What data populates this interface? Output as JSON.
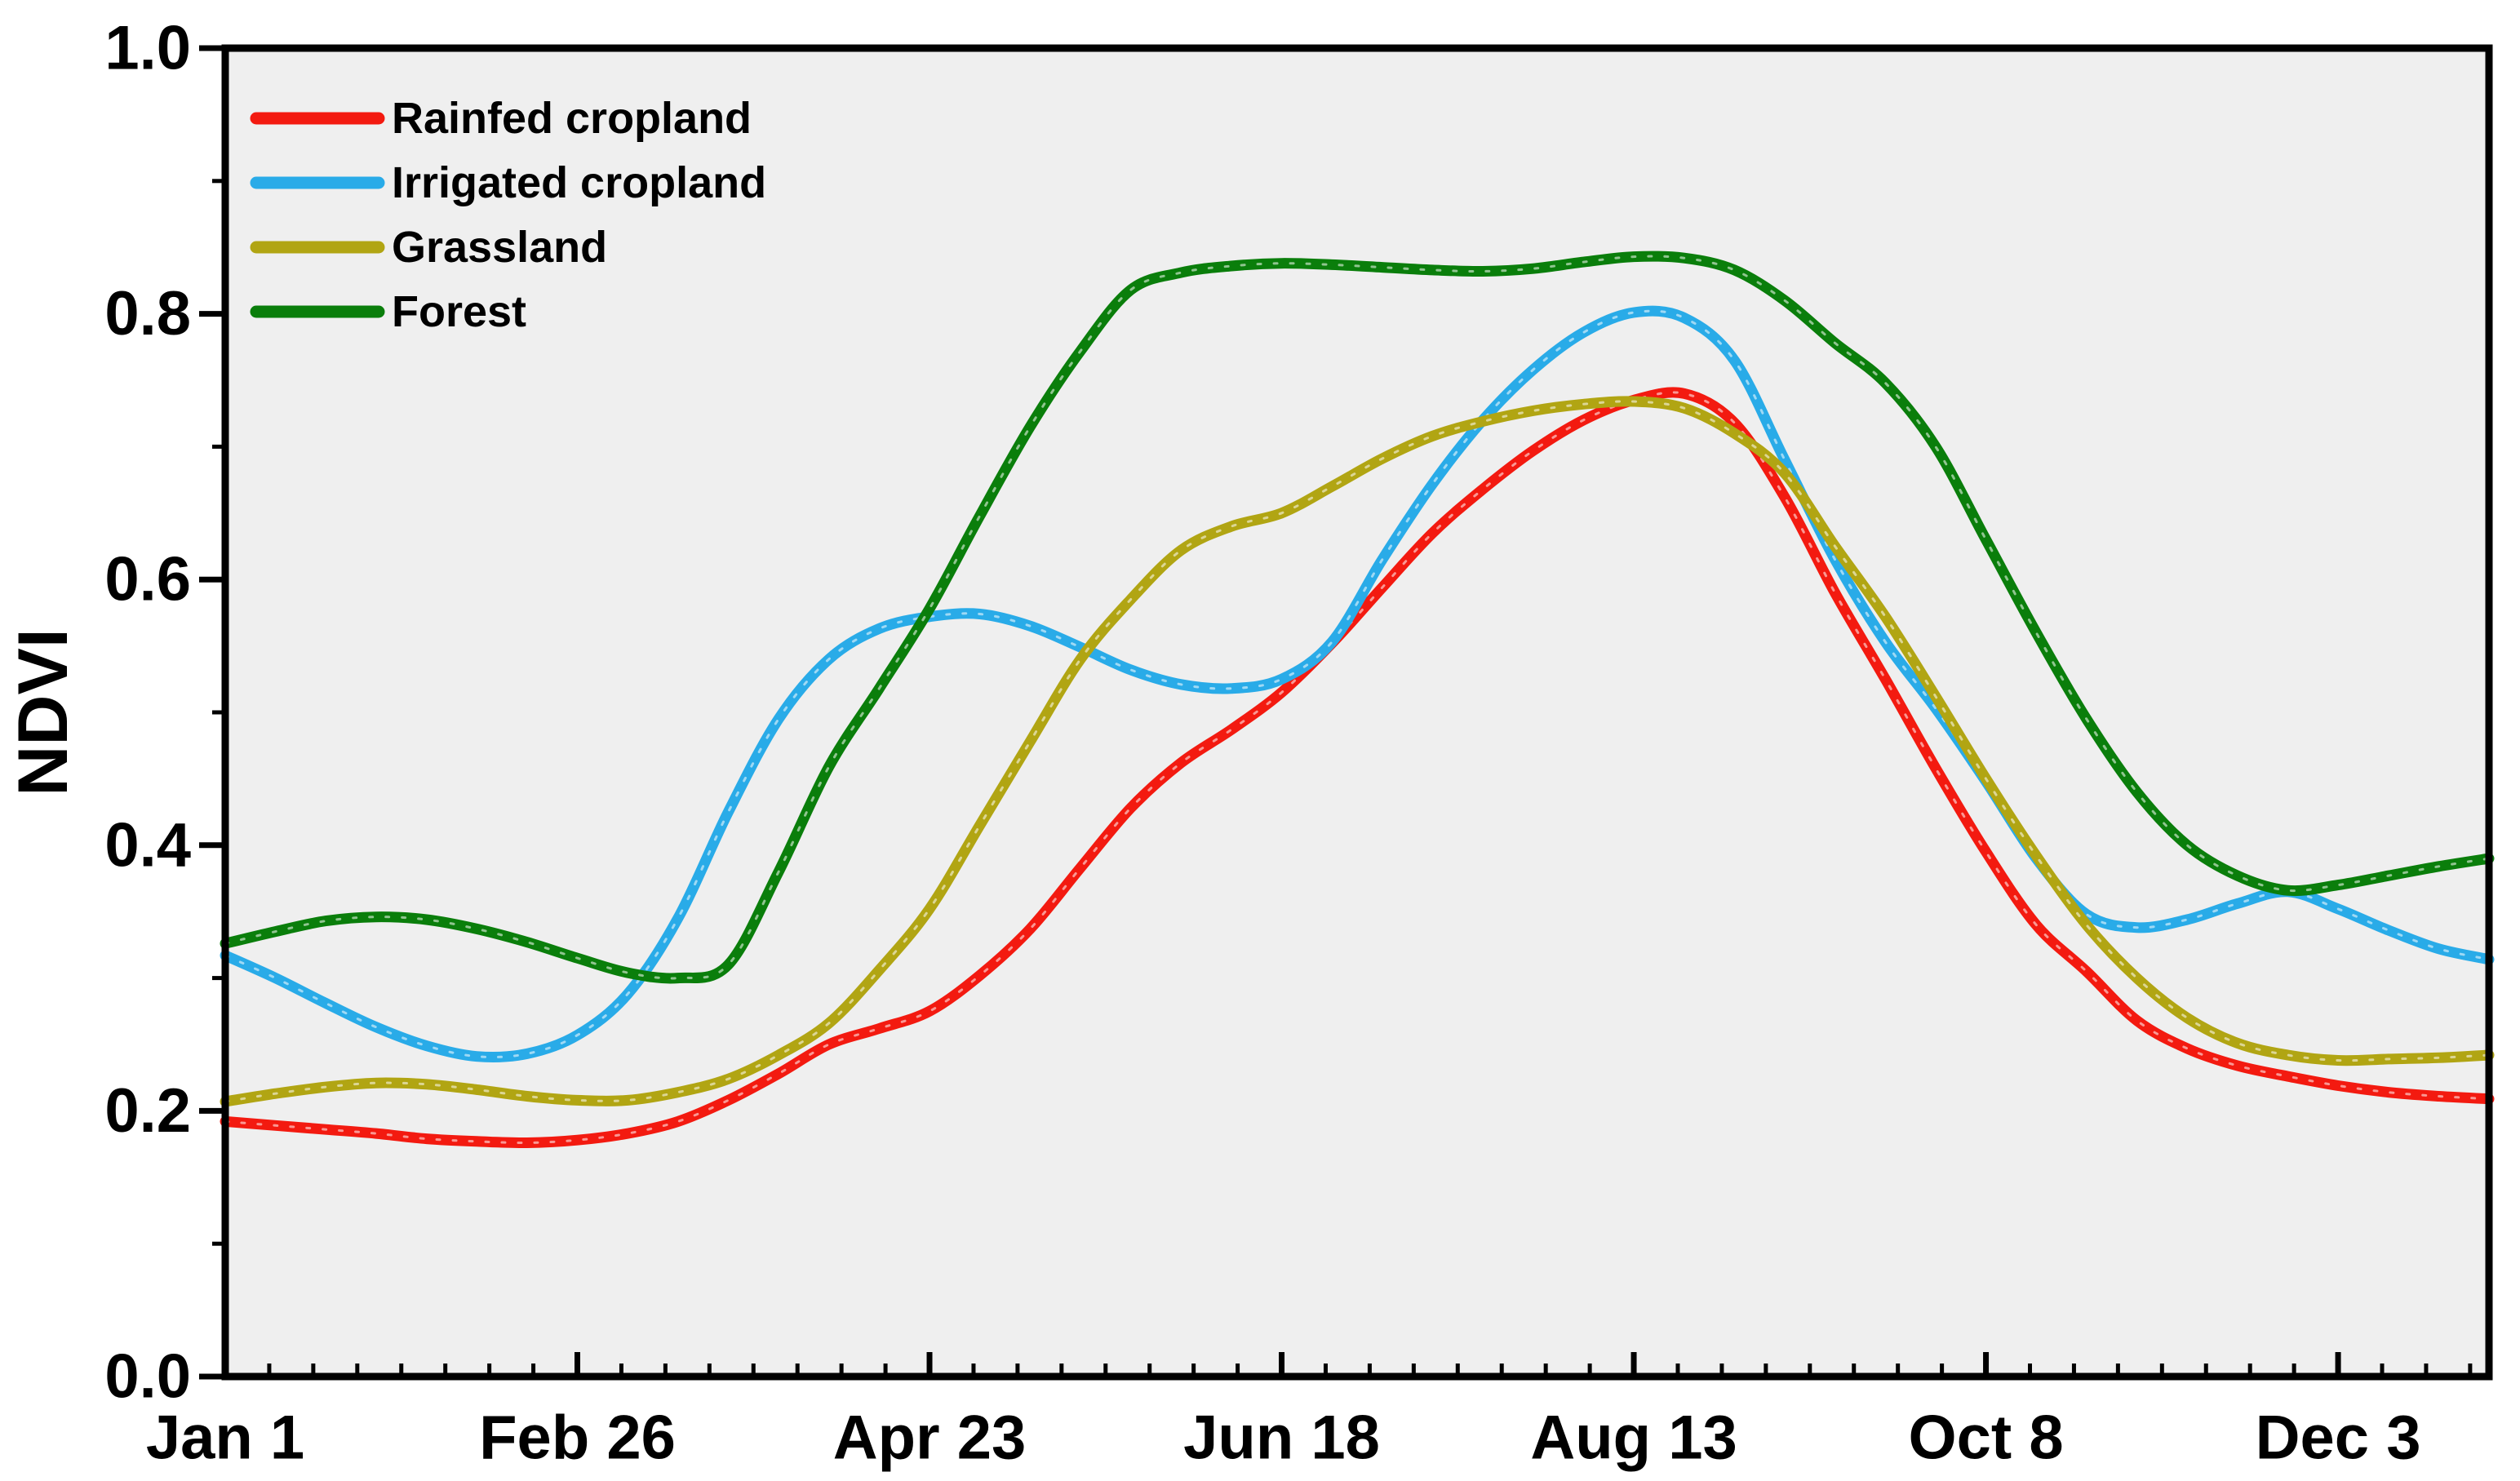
{
  "chart_data": {
    "type": "line",
    "title": "",
    "xlabel": "",
    "ylabel": "NDVI",
    "plot_background": "#EFEFEF",
    "frame_color": "#000000",
    "grid": false,
    "legend_position": "top-left-inside",
    "ylim": [
      0.0,
      1.0
    ],
    "yticks_major": [
      0.0,
      0.2,
      0.4,
      0.6,
      0.8,
      1.0
    ],
    "ytick_labels": [
      "0.0",
      "0.2",
      "0.4",
      "0.6",
      "0.8",
      "1.0"
    ],
    "yticks_minor": [
      0.1,
      0.3,
      0.5,
      0.7,
      0.9
    ],
    "x_unit": "day_of_year",
    "xlim_days": [
      1,
      361
    ],
    "xticks_major_days": [
      1,
      57,
      113,
      169,
      225,
      281,
      337
    ],
    "xtick_labels": [
      "Jan 1",
      "Feb 26",
      "Apr 23",
      "Jun 18",
      "Aug 13",
      "Oct 8",
      "Dec 3"
    ],
    "xtick_minor_step_days": 7,
    "sample_days": [
      1,
      9,
      17,
      25,
      33,
      41,
      49,
      57,
      65,
      73,
      81,
      89,
      97,
      105,
      113,
      121,
      129,
      137,
      145,
      153,
      161,
      169,
      177,
      185,
      193,
      201,
      209,
      217,
      225,
      233,
      241,
      249,
      257,
      265,
      273,
      281,
      289,
      297,
      305,
      313,
      321,
      329,
      337,
      345,
      353,
      361
    ],
    "series": [
      {
        "name": "Rainfed cropland",
        "color": "#F31A10",
        "values": [
          0.192,
          0.189,
          0.186,
          0.183,
          0.179,
          0.177,
          0.176,
          0.178,
          0.183,
          0.192,
          0.208,
          0.228,
          0.25,
          0.262,
          0.275,
          0.302,
          0.337,
          0.383,
          0.428,
          0.462,
          0.487,
          0.515,
          0.552,
          0.594,
          0.635,
          0.668,
          0.697,
          0.72,
          0.735,
          0.74,
          0.718,
          0.662,
          0.59,
          0.525,
          0.458,
          0.395,
          0.34,
          0.305,
          0.268,
          0.247,
          0.234,
          0.226,
          0.219,
          0.214,
          0.211,
          0.209
        ]
      },
      {
        "name": "Irrigated cropland",
        "color": "#29ABE8",
        "values": [
          0.317,
          0.3,
          0.281,
          0.263,
          0.249,
          0.241,
          0.243,
          0.257,
          0.288,
          0.345,
          0.425,
          0.495,
          0.54,
          0.563,
          0.572,
          0.574,
          0.565,
          0.549,
          0.532,
          0.521,
          0.518,
          0.525,
          0.553,
          0.615,
          0.672,
          0.72,
          0.758,
          0.786,
          0.801,
          0.797,
          0.765,
          0.69,
          0.615,
          0.553,
          0.503,
          0.448,
          0.39,
          0.348,
          0.338,
          0.344,
          0.356,
          0.365,
          0.352,
          0.336,
          0.322,
          0.314
        ]
      },
      {
        "name": "Grassland",
        "color": "#B1A513",
        "values": [
          0.207,
          0.213,
          0.218,
          0.221,
          0.22,
          0.216,
          0.211,
          0.208,
          0.208,
          0.214,
          0.224,
          0.242,
          0.266,
          0.306,
          0.352,
          0.415,
          0.478,
          0.54,
          0.585,
          0.622,
          0.64,
          0.65,
          0.67,
          0.691,
          0.708,
          0.719,
          0.727,
          0.732,
          0.734,
          0.729,
          0.71,
          0.68,
          0.625,
          0.572,
          0.512,
          0.45,
          0.392,
          0.34,
          0.3,
          0.27,
          0.251,
          0.242,
          0.238,
          0.239,
          0.24,
          0.242
        ]
      },
      {
        "name": "Forest",
        "color": "#0A7E0B",
        "values": [
          0.326,
          0.335,
          0.343,
          0.346,
          0.344,
          0.337,
          0.327,
          0.315,
          0.304,
          0.3,
          0.31,
          0.38,
          0.459,
          0.518,
          0.578,
          0.648,
          0.715,
          0.772,
          0.818,
          0.831,
          0.836,
          0.838,
          0.837,
          0.835,
          0.833,
          0.832,
          0.834,
          0.839,
          0.843,
          0.842,
          0.833,
          0.81,
          0.778,
          0.748,
          0.7,
          0.63,
          0.56,
          0.495,
          0.44,
          0.4,
          0.377,
          0.366,
          0.37,
          0.377,
          0.384,
          0.39
        ]
      }
    ]
  }
}
